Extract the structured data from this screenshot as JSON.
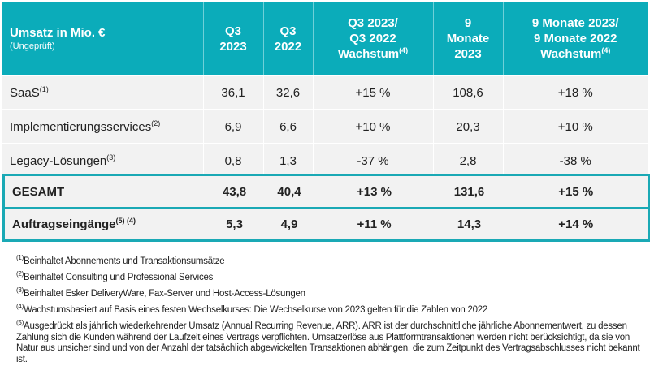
{
  "header": {
    "title": "Umsatz in Mio. €",
    "subtitle": "(Ungeprüft)",
    "columns": [
      {
        "lines": [
          "Q3",
          "2023"
        ],
        "sup": ""
      },
      {
        "lines": [
          "Q3",
          "2022"
        ],
        "sup": ""
      },
      {
        "lines": [
          "Q3 2023/",
          "Q3 2022",
          "Wachstum"
        ],
        "sup": "(4)"
      },
      {
        "lines": [
          "9",
          "Monate",
          "2023"
        ],
        "sup": ""
      },
      {
        "lines": [
          "9 Monate 2023/",
          "9 Monate 2022",
          "Wachstum"
        ],
        "sup": "(4)"
      }
    ]
  },
  "rows": [
    {
      "label": "SaaS",
      "sup": "(1)",
      "values": [
        "36,1",
        "32,6",
        "+15 %",
        "108,6",
        "+18 %"
      ]
    },
    {
      "label": "Implementierungsservices",
      "sup": "(2)",
      "values": [
        "6,9",
        "6,6",
        "+10 %",
        "20,3",
        "+10 %"
      ]
    },
    {
      "label": "Legacy-Lösungen",
      "sup": "(3)",
      "values": [
        "0,8",
        "1,3",
        "-37 %",
        "2,8",
        "-38 %"
      ]
    }
  ],
  "totals": [
    {
      "label": "GESAMT",
      "sup": "",
      "values": [
        "43,8",
        "40,4",
        "+13 %",
        "131,6",
        "+15 %"
      ]
    },
    {
      "label": "Auftragseingänge",
      "sup": "(5) (4)",
      "values": [
        "5,3",
        "4,9",
        "+11 %",
        "14,3",
        "+14 %"
      ]
    }
  ],
  "footnotes": [
    {
      "mark": "(1)",
      "text": "Beinhaltet Abonnements und Transaktionsumsätze"
    },
    {
      "mark": "(2)",
      "text": "Beinhaltet Consulting und Professional Services"
    },
    {
      "mark": "(3)",
      "text": "Beinhaltet Esker DeliveryWare, Fax-Server und Host-Access-Lösungen"
    },
    {
      "mark": "(4)",
      "text": "Wachstumsbasiert auf Basis eines festen Wechselkurses: Die Wechselkurse von 2023 gelten für die Zahlen von 2022"
    },
    {
      "mark": "(5)",
      "text": "Ausgedrückt als jährlich wiederkehrender Umsatz (Annual Recurring Revenue, ARR). ARR ist der durchschnittliche jährliche Abonnementwert, zu dessen Zahlung sich die Kunden während der Laufzeit eines Vertrags verpflichten. Umsatzerlöse aus Plattformtransaktionen werden nicht berücksichtigt, da sie von Natur aus unsicher sind und von der Anzahl der tatsächlich abgewickelten Transaktionen abhängen, die zum Zeitpunkt des Vertragsabschlusses nicht bekannt ist."
    }
  ],
  "colors": {
    "header_bg": "#0bacba",
    "accent_border": "#1aa9b5",
    "row_bg": "#f2f2f2"
  }
}
